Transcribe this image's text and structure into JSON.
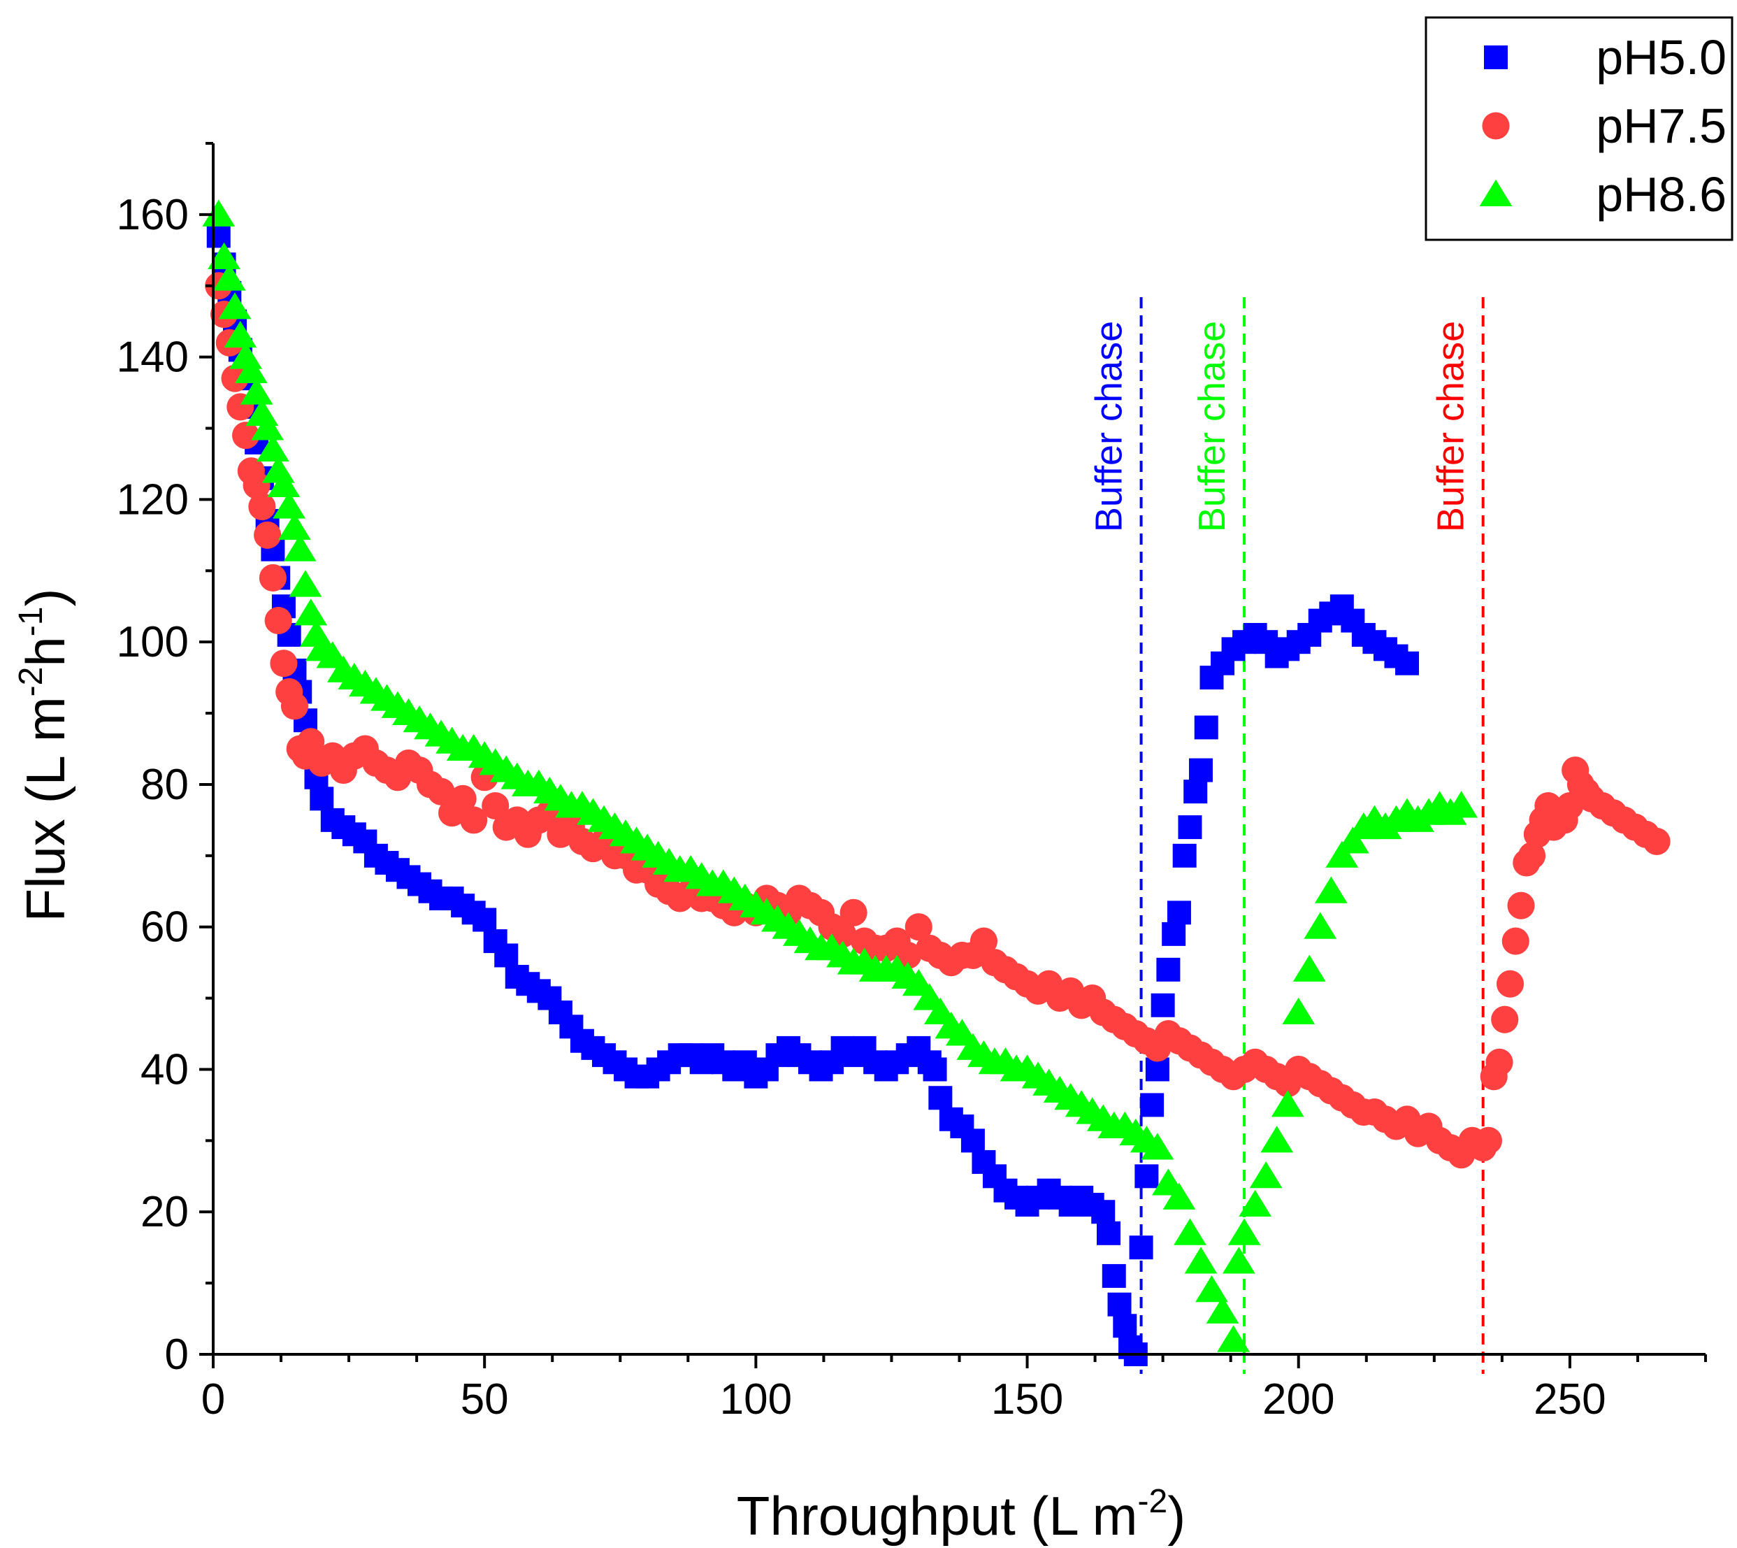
{
  "chart_data": {
    "type": "scatter",
    "title": "",
    "xlabel": "Throughput (L m",
    "xlabel_sup": "-2",
    "xlabel_tail": ")",
    "ylabel_parts": [
      "Flux (L m",
      "-2",
      "h",
      "-1",
      ")"
    ],
    "xlim": [
      0,
      275
    ],
    "ylim": [
      0,
      170
    ],
    "xticks": [
      0,
      50,
      100,
      150,
      200,
      250
    ],
    "yticks": [
      0,
      20,
      40,
      60,
      80,
      100,
      120,
      140,
      160
    ],
    "legend_position": "top-right",
    "series": [
      {
        "name": "pH5.0",
        "marker": "square",
        "color": "#0000ff",
        "x": [
          1,
          2,
          3,
          4,
          5,
          6,
          7,
          8,
          9,
          10,
          11,
          12,
          13,
          14,
          15,
          16,
          17,
          18,
          19,
          20,
          22,
          24,
          26,
          28,
          30,
          32,
          34,
          36,
          38,
          40,
          42,
          44,
          46,
          48,
          50,
          52,
          54,
          56,
          58,
          60,
          62,
          64,
          66,
          68,
          70,
          72,
          74,
          76,
          78,
          80,
          82,
          84,
          86,
          88,
          90,
          92,
          94,
          96,
          98,
          100,
          102,
          104,
          106,
          108,
          110,
          112,
          114,
          116,
          118,
          120,
          122,
          124,
          126,
          128,
          130,
          132,
          133,
          134,
          136,
          138,
          140,
          142,
          144,
          146,
          148,
          150,
          152,
          154,
          156,
          158,
          160,
          162,
          164,
          165,
          166,
          167,
          168,
          169,
          170,
          171,
          172,
          173,
          174,
          175,
          176,
          177,
          178,
          179,
          180,
          181,
          182,
          183,
          184,
          186,
          188,
          190,
          192,
          194,
          196,
          198,
          200,
          202,
          204,
          206,
          208,
          210,
          212,
          214,
          216,
          218,
          220
        ],
        "y": [
          157,
          153,
          149,
          145,
          141,
          137,
          133,
          128,
          123,
          117,
          113,
          109,
          105,
          101,
          96,
          93,
          89,
          85,
          81,
          78,
          75,
          74,
          73,
          72,
          70,
          69,
          68,
          67,
          66,
          65,
          64,
          64,
          63,
          62,
          61,
          58,
          56,
          53,
          52,
          51,
          50,
          48,
          46,
          44,
          43,
          42,
          41,
          40,
          39,
          39,
          40,
          41,
          42,
          42,
          41,
          42,
          41,
          40,
          41,
          39,
          40,
          42,
          43,
          42,
          41,
          40,
          41,
          43,
          42,
          43,
          41,
          40,
          41,
          42,
          43,
          41,
          40,
          36,
          33,
          32,
          30,
          27,
          25,
          23,
          22,
          21,
          22,
          23,
          22,
          21,
          22,
          21,
          20,
          17,
          11,
          7,
          4,
          1,
          0,
          15,
          25,
          35,
          40,
          49,
          54,
          59,
          62,
          70,
          74,
          79,
          82,
          88,
          95,
          97,
          99,
          100,
          101,
          100,
          98,
          99,
          100,
          101,
          103,
          104,
          105,
          103,
          101,
          100,
          99,
          98,
          97
        ]
      },
      {
        "name": "pH7.5",
        "marker": "circle",
        "color": "#ff4040",
        "x": [
          1,
          2,
          3,
          4,
          5,
          6,
          7,
          8,
          9,
          10,
          11,
          12,
          13,
          14,
          15,
          16,
          17,
          18,
          20,
          22,
          24,
          26,
          28,
          30,
          32,
          34,
          36,
          38,
          40,
          42,
          44,
          46,
          48,
          50,
          52,
          54,
          56,
          58,
          60,
          62,
          64,
          66,
          68,
          70,
          72,
          74,
          76,
          78,
          80,
          82,
          84,
          86,
          88,
          90,
          92,
          94,
          96,
          98,
          100,
          102,
          104,
          106,
          108,
          110,
          112,
          114,
          116,
          118,
          120,
          122,
          124,
          126,
          128,
          130,
          132,
          134,
          136,
          138,
          140,
          142,
          144,
          146,
          148,
          150,
          152,
          154,
          156,
          158,
          160,
          162,
          164,
          166,
          168,
          170,
          172,
          174,
          176,
          178,
          180,
          182,
          184,
          186,
          188,
          190,
          192,
          194,
          196,
          198,
          200,
          202,
          204,
          206,
          208,
          210,
          212,
          214,
          216,
          218,
          220,
          222,
          224,
          226,
          228,
          230,
          232,
          234,
          235,
          236,
          237,
          238,
          239,
          240,
          241,
          242,
          243,
          244,
          245,
          246,
          247,
          248,
          249,
          250,
          251,
          252,
          253,
          254,
          256,
          258,
          260,
          262,
          264,
          266
        ],
        "y": [
          150,
          146,
          142,
          137,
          133,
          129,
          124,
          122,
          119,
          115,
          109,
          103,
          97,
          93,
          91,
          85,
          84,
          86,
          83,
          84,
          82,
          84,
          85,
          83,
          82,
          81,
          83,
          82,
          80,
          79,
          76,
          78,
          75,
          81,
          77,
          74,
          75,
          73,
          75,
          76,
          73,
          74,
          72,
          71,
          72,
          70,
          70,
          68,
          68,
          66,
          65,
          64,
          65,
          64,
          64,
          63,
          62,
          63,
          62,
          64,
          63,
          62,
          64,
          63,
          62,
          60,
          59,
          62,
          58,
          57,
          57,
          58,
          56,
          60,
          57,
          56,
          55,
          56,
          56,
          58,
          55,
          54,
          53,
          52,
          51,
          52,
          50,
          51,
          49,
          50,
          48,
          47,
          46,
          45,
          44,
          43,
          45,
          44,
          43,
          42,
          41,
          40,
          39,
          40,
          41,
          40,
          39,
          38,
          40,
          39,
          38,
          37,
          36,
          35,
          34,
          34,
          33,
          32,
          33,
          31,
          32,
          30,
          29,
          28,
          30,
          29,
          30,
          39,
          41,
          47,
          52,
          58,
          63,
          69,
          70,
          73,
          75,
          77,
          74,
          76,
          75,
          77,
          82,
          80,
          79,
          78,
          77,
          76,
          75,
          74,
          73,
          72
        ]
      },
      {
        "name": "pH8.6",
        "marker": "triangle",
        "color": "#00ff00",
        "x": [
          1,
          2,
          3,
          4,
          5,
          6,
          7,
          8,
          9,
          10,
          11,
          12,
          13,
          14,
          15,
          16,
          17,
          18,
          19,
          20,
          22,
          24,
          26,
          28,
          30,
          32,
          34,
          36,
          38,
          40,
          42,
          44,
          46,
          48,
          50,
          52,
          54,
          56,
          58,
          60,
          62,
          64,
          66,
          68,
          70,
          72,
          74,
          76,
          78,
          80,
          82,
          84,
          86,
          88,
          90,
          92,
          94,
          96,
          98,
          100,
          102,
          104,
          106,
          108,
          110,
          112,
          114,
          116,
          118,
          120,
          122,
          124,
          126,
          128,
          130,
          132,
          134,
          136,
          138,
          140,
          142,
          144,
          146,
          148,
          150,
          152,
          154,
          156,
          158,
          160,
          162,
          164,
          166,
          168,
          170,
          172,
          174,
          176,
          178,
          180,
          182,
          184,
          186,
          188,
          189,
          190,
          192,
          194,
          196,
          198,
          200,
          202,
          204,
          206,
          208,
          210,
          212,
          214,
          216,
          218,
          220,
          222,
          224,
          226,
          228,
          230
        ],
        "y": [
          160,
          154,
          151,
          147,
          143,
          140,
          138,
          135,
          132,
          130,
          127,
          124,
          122,
          119,
          116,
          113,
          108,
          104,
          101,
          99,
          98,
          96,
          95,
          94,
          93,
          92,
          91,
          90,
          89,
          88,
          87,
          86,
          85,
          85,
          84,
          83,
          82,
          81,
          80,
          80,
          79,
          78,
          77,
          77,
          76,
          75,
          74,
          73,
          72,
          71,
          70,
          69,
          68,
          68,
          67,
          66,
          66,
          65,
          64,
          63,
          62,
          61,
          60,
          59,
          58,
          57,
          57,
          56,
          55,
          55,
          54,
          54,
          54,
          53,
          52,
          50,
          48,
          46,
          45,
          43,
          42,
          41,
          41,
          40,
          40,
          39,
          38,
          37,
          36,
          35,
          34,
          33,
          32,
          32,
          31,
          30,
          29,
          24,
          22,
          17,
          13,
          9,
          6,
          2,
          13,
          17,
          21,
          25,
          30,
          35,
          48,
          54,
          60,
          65,
          70,
          72,
          74,
          75,
          74,
          75,
          76,
          75,
          76,
          77,
          76,
          77
        ]
      }
    ],
    "vlines": [
      {
        "x": 171,
        "label": "Buffer chase",
        "color": "#0000ff"
      },
      {
        "x": 190,
        "label": "Buffer chase",
        "color": "#00ff00"
      },
      {
        "x": 234,
        "label": "Buffer chase",
        "color": "#ff0000"
      }
    ]
  }
}
